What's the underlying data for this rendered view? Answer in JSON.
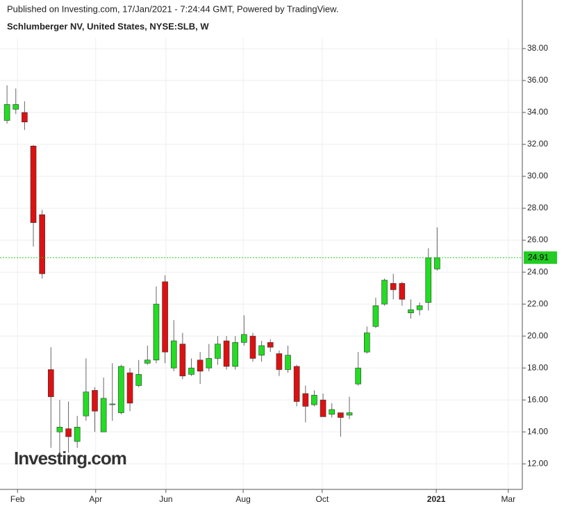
{
  "chart_data": {
    "type": "candlestick",
    "title": "Schlumberger NV, United States, NYSE:SLB, W",
    "subtitle": "Published on Investing.com, 17/Jan/2021 - 7:24:44 GMT, Powered by TradingView.",
    "watermark": "Investing.com",
    "categories": [
      null,
      null,
      null,
      null,
      null,
      null,
      null,
      null,
      null,
      null,
      null,
      null,
      null,
      null,
      null,
      null,
      null,
      null,
      null,
      null,
      null,
      null,
      null,
      null,
      null,
      null,
      null,
      null,
      null,
      null,
      null,
      null,
      null,
      null,
      null,
      null,
      null,
      null,
      null,
      null,
      null,
      null,
      null,
      null,
      null,
      null,
      null,
      null,
      null,
      null
    ],
    "open": [
      33.5,
      34.2,
      34.0,
      31.9,
      27.6,
      17.9,
      14.0,
      14.2,
      13.4,
      15.0,
      16.6,
      14.0,
      15.7,
      15.2,
      17.7,
      16.9,
      18.3,
      18.5,
      23.4,
      18.0,
      19.5,
      17.6,
      18.5,
      18.0,
      18.6,
      19.7,
      18.1,
      19.6,
      20.0,
      18.8,
      19.6,
      18.9,
      17.9,
      18.1,
      16.4,
      15.7,
      16.0,
      15.1,
      15.2,
      15.05,
      17.0,
      19.0,
      20.6,
      22.0,
      23.3,
      23.3,
      21.45,
      21.65,
      22.1,
      24.2
    ],
    "high": [
      35.7,
      35.5,
      34.7,
      31.95,
      27.9,
      19.3,
      16.0,
      15.9,
      15.0,
      18.6,
      16.8,
      17.4,
      18.3,
      18.2,
      18.0,
      18.5,
      19.4,
      23.1,
      23.8,
      21.0,
      20.2,
      18.6,
      19.0,
      19.5,
      20.0,
      20.0,
      20.0,
      21.3,
      20.2,
      19.7,
      19.8,
      19.1,
      19.4,
      18.2,
      16.9,
      16.6,
      16.4,
      15.8,
      15.2,
      16.2,
      19.0,
      20.6,
      22.4,
      23.6,
      23.9,
      23.4,
      22.3,
      22.1,
      25.5,
      26.8
    ],
    "low": [
      33.3,
      33.9,
      32.9,
      25.6,
      23.6,
      13.0,
      12.6,
      12.7,
      13.0,
      14.7,
      14.0,
      14.0,
      14.7,
      15.1,
      15.3,
      16.8,
      18.2,
      18.3,
      18.3,
      17.8,
      17.3,
      17.5,
      17.0,
      17.8,
      18.2,
      17.9,
      17.9,
      19.4,
      18.4,
      18.4,
      19.0,
      17.5,
      17.7,
      15.6,
      14.6,
      15.6,
      14.95,
      14.9,
      13.7,
      14.8,
      16.9,
      18.9,
      20.5,
      21.9,
      22.3,
      21.9,
      21.1,
      21.3,
      21.6,
      24.1
    ],
    "close": [
      34.5,
      34.5,
      33.4,
      27.1,
      23.9,
      16.2,
      14.3,
      13.7,
      14.3,
      16.5,
      15.3,
      16.1,
      15.75,
      18.1,
      15.8,
      17.6,
      18.5,
      22.0,
      19.0,
      19.7,
      17.5,
      18.0,
      17.8,
      18.6,
      19.5,
      18.1,
      19.6,
      20.1,
      18.6,
      19.4,
      19.3,
      17.9,
      18.8,
      15.9,
      15.6,
      16.3,
      14.95,
      15.4,
      14.9,
      15.2,
      18.0,
      20.2,
      21.9,
      23.5,
      22.9,
      22.3,
      21.65,
      21.9,
      24.9,
      24.91
    ],
    "up_color": "#22dd22",
    "down_color": "#dd1111",
    "last_price": 24.91,
    "last_price_color": "#22cc22",
    "xlim": [
      -0.8,
      58.7
    ],
    "xticks": [
      {
        "value": 1.2,
        "label": "Feb"
      },
      {
        "value": 10.1,
        "label": "Apr"
      },
      {
        "value": 18.1,
        "label": "Jun"
      },
      {
        "value": 26.9,
        "label": "Aug"
      },
      {
        "value": 35.9,
        "label": "Oct"
      },
      {
        "value": 48.9,
        "label": "2021"
      },
      {
        "value": 57.1,
        "label": "Mar"
      }
    ],
    "ylim": [
      10.4,
      38.65
    ],
    "yticks": [
      {
        "value": 12,
        "label": "12.00"
      },
      {
        "value": 14,
        "label": "14.00"
      },
      {
        "value": 16,
        "label": "16.00"
      },
      {
        "value": 18,
        "label": "18.00"
      },
      {
        "value": 20,
        "label": "20.00"
      },
      {
        "value": 22,
        "label": "22.00"
      },
      {
        "value": 24,
        "label": "24.00"
      },
      {
        "value": 26,
        "label": "26.00"
      },
      {
        "value": 28,
        "label": "28.00"
      },
      {
        "value": 30,
        "label": "30.00"
      },
      {
        "value": 32,
        "label": "32.00"
      },
      {
        "value": 34,
        "label": "34.00"
      },
      {
        "value": 36,
        "label": "36.00"
      },
      {
        "value": 38,
        "label": "38.00"
      }
    ],
    "grid": true
  }
}
